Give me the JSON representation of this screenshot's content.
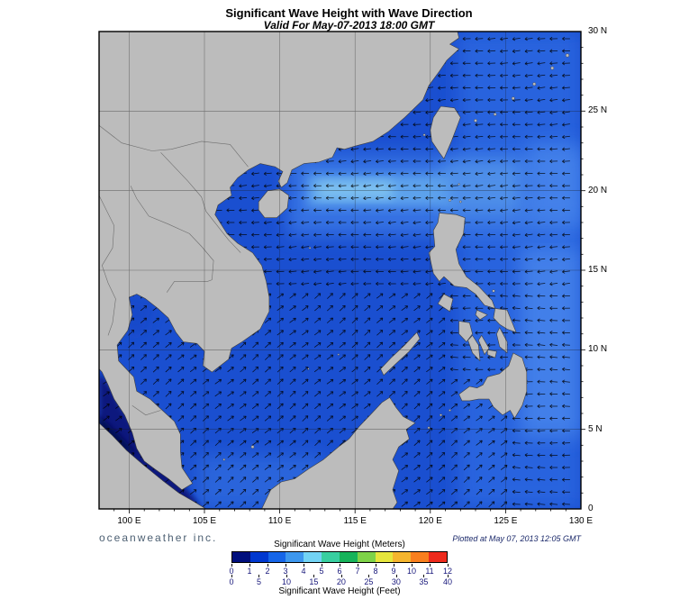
{
  "header": {
    "title": "Significant Wave Height with Wave Direction",
    "subtitle": "Valid For May-07-2013 18:00 GMT"
  },
  "footer": {
    "brand": "oceanweather inc.",
    "plotted": "Plotted at May 07, 2013 12:05 GMT"
  },
  "axes": {
    "lon_tick_labels": [
      "100 E",
      "105 E",
      "110 E",
      "115 E",
      "120 E",
      "125 E",
      "130 E"
    ],
    "lon_tick_values": [
      100,
      105,
      110,
      115,
      120,
      125,
      130
    ],
    "lat_tick_labels": [
      "30 N",
      "25 N",
      "20 N",
      "15 N",
      "10 N",
      "5 N",
      "0"
    ],
    "lat_tick_values": [
      30,
      25,
      20,
      15,
      10,
      5,
      0
    ]
  },
  "legend": {
    "title_meters": "Significant Wave Height (Meters)",
    "title_feet": "Significant Wave Height (Feet)",
    "meters_ticks": [
      "0",
      "1",
      "2",
      "3",
      "4",
      "5",
      "6",
      "7",
      "8",
      "9",
      "10",
      "11",
      "12"
    ],
    "feet_ticks": [
      "0",
      "5",
      "10",
      "15",
      "20",
      "25",
      "30",
      "35",
      "40"
    ],
    "feet_values": [
      0,
      5,
      10,
      15,
      20,
      25,
      30,
      35,
      40
    ],
    "colors": [
      "#000f7d",
      "#0038d0",
      "#1565e8",
      "#3d97ee",
      "#72d3f4",
      "#38cfa0",
      "#16b35a",
      "#7ed348",
      "#e6e63c",
      "#f5b52e",
      "#f97f1e",
      "#ee2a1c"
    ]
  },
  "chart_data": {
    "type": "heatmap",
    "title": "Significant Wave Height with Wave Direction",
    "valid_time_gmt": "May-07-2013 18:00",
    "plotted_time_gmt": "May 07, 2013 12:05",
    "lon_range_deg_e": [
      98,
      130
    ],
    "lat_range_deg_n": [
      0,
      30
    ],
    "grid_spacing_deg": 5,
    "units": [
      "Meters",
      "Feet"
    ],
    "scale_meters": [
      0,
      1,
      2,
      3,
      4,
      5,
      6,
      7,
      8,
      9,
      10,
      11,
      12
    ],
    "scale_feet": [
      0,
      5,
      10,
      15,
      20,
      25,
      30,
      35,
      40
    ],
    "regions": [
      {
        "area": "South China Sea (central)",
        "wave_height_m": 1.5,
        "direction_toward": "NE"
      },
      {
        "area": "Band 19-21N east of Hainan through Luzon Strait",
        "wave_height_m": 2.5,
        "direction_toward": "W"
      },
      {
        "area": "Philippine Sea east of Luzon",
        "wave_height_m": 2.0,
        "direction_toward": "W"
      },
      {
        "area": "East China Sea / Ryukyu Islands",
        "wave_height_m": 1.5,
        "direction_toward": "W"
      },
      {
        "area": "Gulf of Thailand",
        "wave_height_m": 1.0,
        "direction_toward": "NE"
      },
      {
        "area": "Malacca Strait (bottom left)",
        "wave_height_m": 0.25,
        "direction_toward": "calm"
      },
      {
        "area": "Pacific east of Mindanao",
        "wave_height_m": 2.0,
        "direction_toward": "W"
      }
    ]
  },
  "colors": {
    "ocean_base": "#1a4fd0",
    "land": "#bcbcbc",
    "frame": "#000000"
  }
}
